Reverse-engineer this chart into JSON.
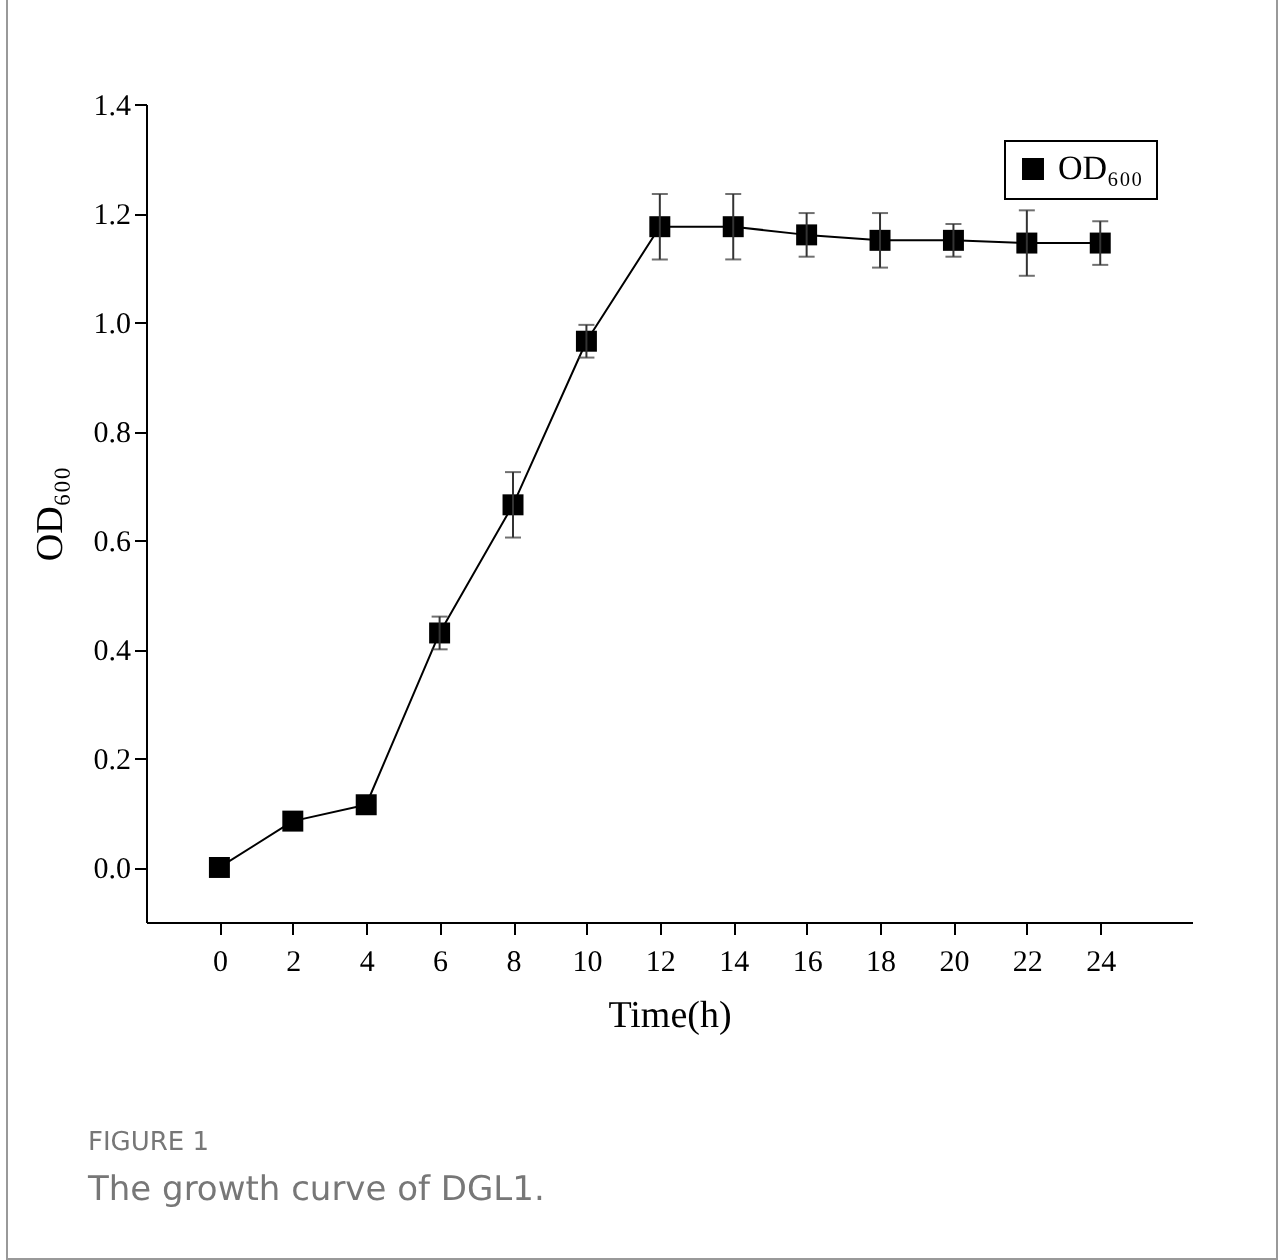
{
  "chart_data": {
    "type": "line",
    "xlabel": "Time(h)",
    "ylabel": "OD₆₀₀",
    "x": [
      0,
      2,
      4,
      6,
      8,
      10,
      12,
      14,
      16,
      18,
      20,
      22,
      24
    ],
    "series": [
      {
        "name": "OD₆₀₀",
        "color": "#000000",
        "values": [
          0,
          0.085,
          0.115,
          0.43,
          0.665,
          0.965,
          1.175,
          1.175,
          1.16,
          1.15,
          1.15,
          1.145,
          1.145
        ],
        "errors": [
          null,
          null,
          null,
          0.03,
          0.06,
          0.03,
          0.06,
          0.06,
          0.04,
          0.05,
          0.03,
          0.06,
          0.04
        ]
      }
    ],
    "xlim": [
      -2,
      26.5
    ],
    "xticks": [
      0,
      2,
      4,
      6,
      8,
      10,
      12,
      14,
      16,
      18,
      20,
      22,
      24
    ],
    "ylim": [
      -0.1,
      1.4
    ],
    "yticks": [
      {
        "value": 0,
        "label": "0.0"
      },
      0.2,
      0.4,
      0.6,
      0.8,
      {
        "value": 1,
        "label": "1.0"
      },
      1.2,
      1.4
    ],
    "marker": "square",
    "line_style": "solid",
    "legend": "top right",
    "grid": false,
    "annotations": [
      "FIGURE 1",
      "The growth curve of DGL1."
    ]
  }
}
